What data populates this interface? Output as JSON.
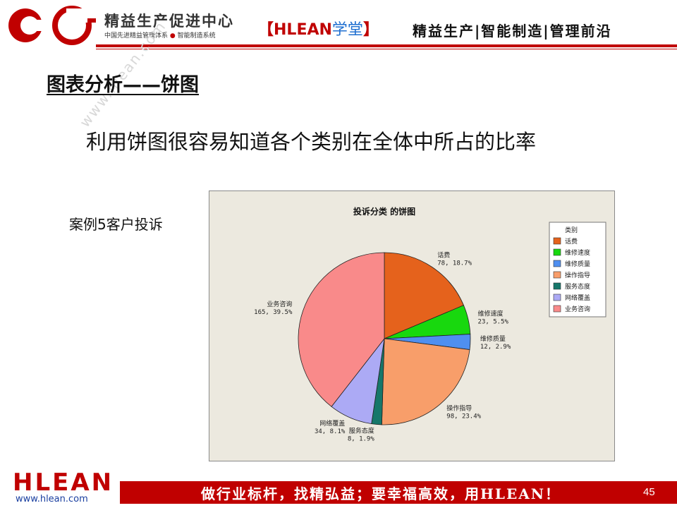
{
  "header": {
    "brand_title": "精益生产促进中心",
    "brand_sub_left": "中国先进精益管理体系",
    "brand_sub_dot": "●",
    "brand_sub_right": "智能制造系统",
    "hlean_open": "【",
    "hlean_name": "HLEAN",
    "hlean_school": "学堂",
    "hlean_close": "】",
    "tagline": "精益生产|智能制造|管理前沿",
    "colors": {
      "accent": "#c00000",
      "link_blue": "#1f6fd0"
    }
  },
  "slide": {
    "title": "图表分析——饼图",
    "lead": "利用饼图很容易知道各个类别在全体中所占的比率",
    "case_label": "案例5客户投诉",
    "watermark": "www.hlean.com"
  },
  "chart_data": {
    "type": "pie",
    "title": "投诉分类 的饼图",
    "legend_title": "类别",
    "legend_position": "top-right",
    "slices": [
      {
        "name": "话费",
        "value": 78,
        "percent": "18.7%",
        "label": "78, 18.7%",
        "color": "#e5621c"
      },
      {
        "name": "维修速度",
        "value": 23,
        "percent": "5.5%",
        "label": "23, 5.5%",
        "color": "#18d80e"
      },
      {
        "name": "维修质量",
        "value": 12,
        "percent": "2.9%",
        "label": "12, 2.9%",
        "color": "#4f8ff0"
      },
      {
        "name": "操作指导",
        "value": 98,
        "percent": "23.4%",
        "label": "98, 23.4%",
        "color": "#f89e6a"
      },
      {
        "name": "服务态度",
        "value": 8,
        "percent": "1.9%",
        "label": "8, 1.9%",
        "color": "#16776a"
      },
      {
        "name": "网络覆盖",
        "value": 34,
        "percent": "8.1%",
        "label": "34, 8.1%",
        "color": "#acaaf5"
      },
      {
        "name": "业务咨询",
        "value": 165,
        "percent": "39.5%",
        "label": "165, 39.5%",
        "color": "#f98a8a"
      }
    ]
  },
  "footer": {
    "logo": "HLEAN",
    "url": "www.hlean.com",
    "slogan": "做行业标杆，找精弘益；要幸福高效，用HLEAN！",
    "page_number": "45"
  }
}
